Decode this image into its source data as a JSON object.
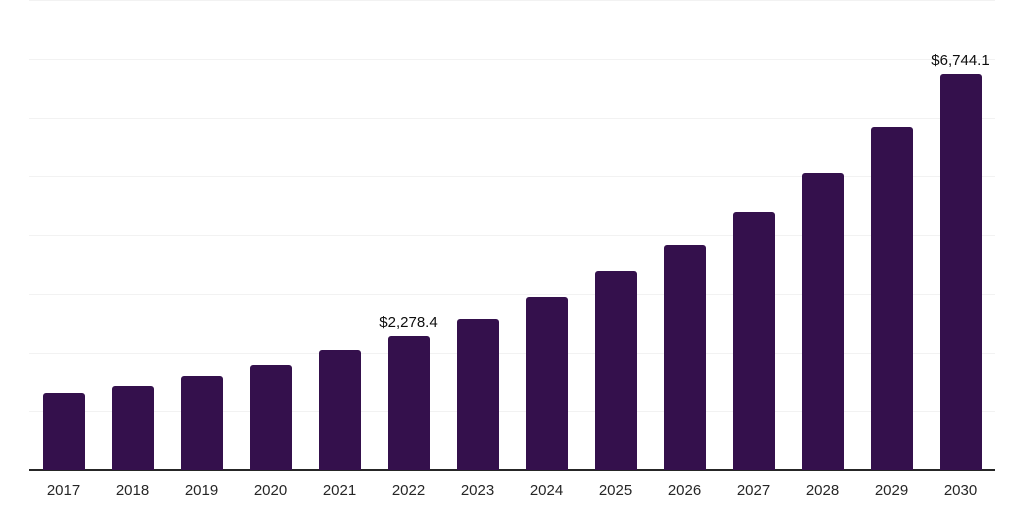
{
  "chart_data": {
    "type": "bar",
    "title": "",
    "xlabel": "",
    "ylabel": "",
    "legend": "none",
    "grid": "horizontal",
    "categories": [
      "2017",
      "2018",
      "2019",
      "2020",
      "2021",
      "2022",
      "2023",
      "2024",
      "2025",
      "2026",
      "2027",
      "2028",
      "2029",
      "2030"
    ],
    "values": [
      1310,
      1430,
      1600,
      1790,
      2040,
      2278.4,
      2570,
      2940,
      3390,
      3830,
      4390,
      5050,
      5840,
      6744.1
    ],
    "data_labels": {
      "2022": "$2,278.4",
      "2030": "$6,744.1"
    },
    "ylim": [
      0,
      8000
    ],
    "gridline_interval": 1000,
    "colors": {
      "bar": "#34104C",
      "gridline": "#f2f2f2",
      "axis_line": "#262626",
      "x_label": "#262626",
      "value_label": "#0d0d0d",
      "background": "#ffffff"
    }
  }
}
